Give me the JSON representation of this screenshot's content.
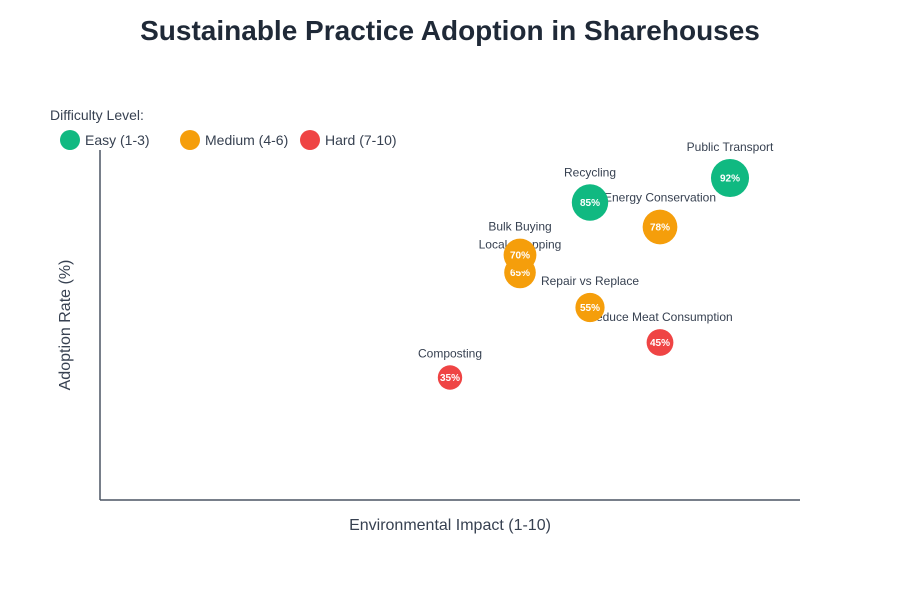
{
  "chart_data": {
    "type": "scatter",
    "title": "Sustainable Practice Adoption in Sharehouses",
    "xlabel": "Environmental Impact (1-10)",
    "ylabel": "Adoption Rate (%)",
    "xlim": [
      0,
      10
    ],
    "ylim": [
      0,
      100
    ],
    "grid": false,
    "legend": {
      "title": "Difficulty Level:",
      "placement": "top-left",
      "entries": [
        {
          "key": "easy",
          "label": "Easy (1-3)",
          "color": "#10b981"
        },
        {
          "key": "medium",
          "label": "Medium (4-6)",
          "color": "#f59e0b"
        },
        {
          "key": "hard",
          "label": "Hard (7-10)",
          "color": "#ef4444"
        }
      ]
    },
    "points": [
      {
        "name": "Composting",
        "x": 5,
        "y": 35,
        "difficulty": "hard",
        "label": "35%"
      },
      {
        "name": "Local Shopping",
        "x": 6,
        "y": 65,
        "difficulty": "medium",
        "label": "65%"
      },
      {
        "name": "Bulk Buying",
        "x": 6,
        "y": 70,
        "difficulty": "medium",
        "label": "70%"
      },
      {
        "name": "Repair vs Replace",
        "x": 7,
        "y": 55,
        "difficulty": "medium",
        "label": "55%"
      },
      {
        "name": "Recycling",
        "x": 7,
        "y": 85,
        "difficulty": "easy",
        "label": "85%"
      },
      {
        "name": "Reduce Meat Consumption",
        "x": 8,
        "y": 45,
        "difficulty": "hard",
        "label": "45%"
      },
      {
        "name": "Energy Conservation",
        "x": 8,
        "y": 78,
        "difficulty": "medium",
        "label": "78%"
      },
      {
        "name": "Public Transport",
        "x": 9,
        "y": 92,
        "difficulty": "easy",
        "label": "92%"
      }
    ]
  }
}
